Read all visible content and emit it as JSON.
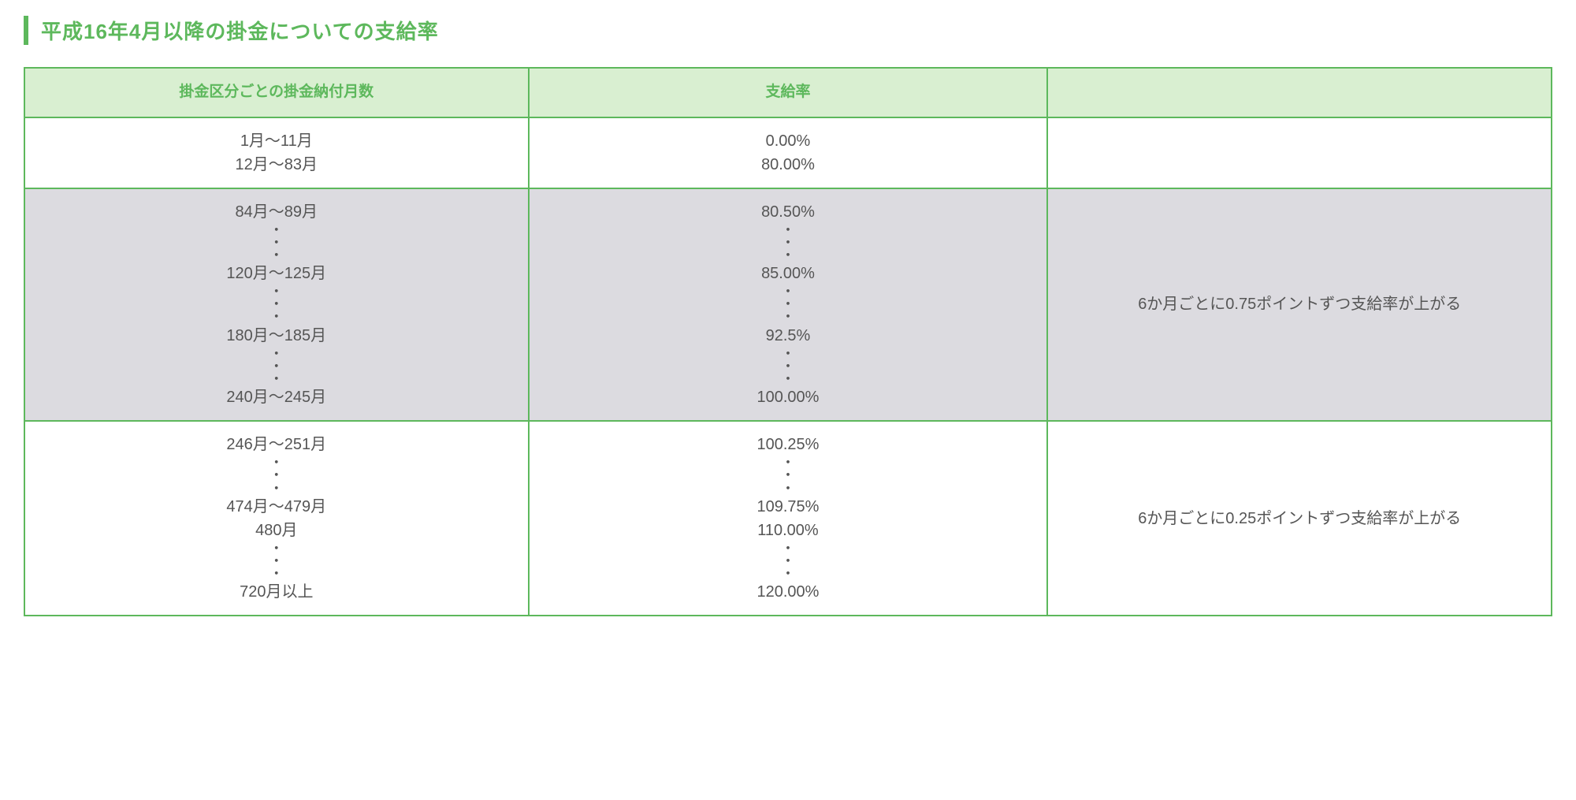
{
  "heading": "平成16年4月以降の掛金についての支給率",
  "table": {
    "headers": {
      "months": "掛金区分ごとの掛金納付月数",
      "rate": "支給率",
      "note": ""
    },
    "rows": [
      {
        "shaded": false,
        "months_lines": [
          "1月〜11月",
          "12月〜83月"
        ],
        "rate_lines": [
          "0.00%",
          "80.00%"
        ],
        "note": ""
      },
      {
        "shaded": true,
        "months_lines": [
          "84月〜89月",
          "・",
          "・",
          "・",
          "120月〜125月",
          "・",
          "・",
          "・",
          "180月〜185月",
          "・",
          "・",
          "・",
          "240月〜245月"
        ],
        "rate_lines": [
          "80.50%",
          "・",
          "・",
          "・",
          "85.00%",
          "・",
          "・",
          "・",
          "92.5%",
          "・",
          "・",
          "・",
          "100.00%"
        ],
        "note": "6か月ごとに0.75ポイントずつ支給率が上がる"
      },
      {
        "shaded": false,
        "months_lines": [
          "246月〜251月",
          "・",
          "・",
          "・",
          "474月〜479月",
          "480月",
          "・",
          "・",
          "・",
          "720月以上"
        ],
        "rate_lines": [
          "100.25%",
          "・",
          "・",
          "・",
          "109.75%",
          "110.00%",
          "・",
          "・",
          "・",
          "120.00%"
        ],
        "note": "6か月ごとに0.25ポイントずつ支給率が上がる"
      }
    ]
  },
  "colors": {
    "brand_green": "#5db85c",
    "header_bg": "#d9efd1",
    "shaded_row_bg": "#dcdbe0",
    "text": "#555555",
    "page_bg": "#ffffff"
  }
}
